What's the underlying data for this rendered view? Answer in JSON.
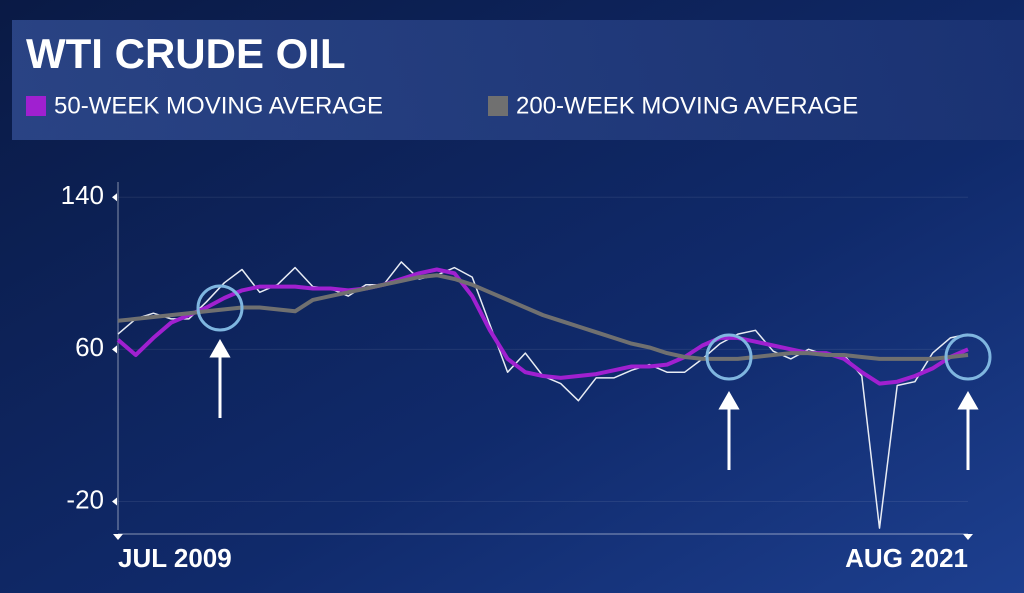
{
  "chart_data": {
    "type": "line",
    "title": "WTI CRUDE OIL",
    "categories": [
      "JUL 2009",
      null,
      null,
      null,
      null,
      null,
      null,
      null,
      null,
      null,
      null,
      null,
      null,
      null,
      null,
      null,
      null,
      null,
      null,
      null,
      null,
      null,
      null,
      null,
      null,
      null,
      null,
      null,
      null,
      null,
      null,
      null,
      null,
      null,
      null,
      null,
      null,
      null,
      null,
      null,
      null,
      null,
      null,
      null,
      null,
      null,
      null,
      null,
      "AUG 2021"
    ],
    "series": [
      {
        "color": "#e8ecf4",
        "values": [
          68,
          76,
          79,
          76,
          76,
          85,
          95,
          102,
          90,
          94,
          103,
          93,
          92,
          88,
          94,
          94,
          106,
          97,
          99,
          103,
          98,
          73,
          48,
          58,
          46,
          42,
          33,
          45,
          45,
          49,
          52,
          48,
          48,
          55,
          63,
          68,
          70,
          59,
          55,
          60,
          57,
          57,
          46,
          -34,
          41,
          43,
          58,
          66,
          68
        ]
      },
      {
        "name": "50-WEEK MOVING AVERAGE",
        "color": "#a020d0",
        "values": [
          65,
          57,
          66,
          74,
          78,
          82,
          87,
          91,
          93,
          93,
          93,
          92,
          92,
          91,
          92,
          94,
          97,
          100,
          102,
          100,
          88,
          70,
          55,
          48,
          46,
          45,
          46,
          47,
          49,
          51,
          51,
          52,
          56,
          62,
          66,
          66,
          64,
          62,
          60,
          58,
          58,
          55,
          48,
          42,
          43,
          46,
          50,
          56,
          60
        ]
      },
      {
        "name": "200-WEEK MOVING AVERAGE",
        "color": "#707070",
        "values": [
          75,
          76,
          77,
          78,
          79,
          80,
          81,
          82,
          82,
          81,
          80,
          86,
          88,
          90,
          92,
          94,
          96,
          98,
          99,
          97,
          94,
          90,
          86,
          82,
          78,
          75,
          72,
          69,
          66,
          63,
          61,
          58,
          56,
          55,
          55,
          55,
          56,
          57,
          58,
          58,
          57,
          57,
          56,
          55,
          55,
          55,
          55,
          56,
          57
        ]
      }
    ],
    "ylim": [
      -35,
      148
    ],
    "yticks": [
      -20,
      60,
      140
    ],
    "grid": true
  }
}
